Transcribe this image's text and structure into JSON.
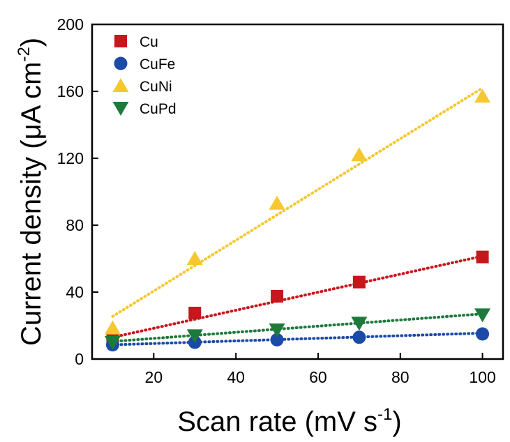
{
  "chart_data": {
    "type": "scatter",
    "title": "",
    "xlabel": "Scan rate (mV s",
    "xlabel_sup": "-1",
    "xlabel_end": ")",
    "ylabel": "Current density (μA cm",
    "ylabel_sup": "-2",
    "ylabel_end": ")",
    "xlim": [
      5,
      105
    ],
    "ylim": [
      0,
      200
    ],
    "xticks": [
      20,
      40,
      60,
      80,
      100
    ],
    "yticks": [
      0,
      40,
      80,
      120,
      160,
      200
    ],
    "grid": false,
    "legend_position": "top-left",
    "x": [
      10,
      30,
      50,
      70,
      100
    ],
    "series": [
      {
        "name": "Cu",
        "marker": "square",
        "color": "#c8171c",
        "values": [
          11.5,
          27.5,
          37.5,
          46,
          61
        ],
        "fit": [
          10,
          13.0,
          100,
          61.5
        ]
      },
      {
        "name": "CuFe",
        "marker": "circle",
        "color": "#1b4aa8",
        "values": [
          8.5,
          10,
          11.5,
          13,
          15
        ],
        "fit": [
          10,
          8.5,
          100,
          15.5
        ]
      },
      {
        "name": "CuNi",
        "marker": "triangle-up",
        "color": "#f5c832",
        "values": [
          18.5,
          60,
          93,
          122,
          157
        ],
        "fit": [
          10,
          25.5,
          100,
          162
        ]
      },
      {
        "name": "CuPd",
        "marker": "triangle-down",
        "color": "#1e7a3c",
        "values": [
          10,
          14,
          17.5,
          21.5,
          26.5
        ],
        "fit": [
          10,
          10.5,
          100,
          27
        ]
      }
    ]
  }
}
